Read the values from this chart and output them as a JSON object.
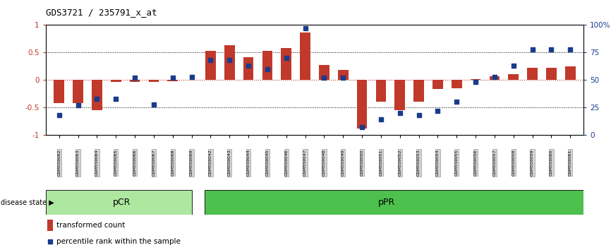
{
  "title": "GDS3721 / 235791_x_at",
  "samples": [
    "GSM559062",
    "GSM559063",
    "GSM559064",
    "GSM559065",
    "GSM559066",
    "GSM559067",
    "GSM559068",
    "GSM559069",
    "GSM559042",
    "GSM559043",
    "GSM559044",
    "GSM559045",
    "GSM559046",
    "GSM559047",
    "GSM559048",
    "GSM559049",
    "GSM559050",
    "GSM559051",
    "GSM559052",
    "GSM559053",
    "GSM559054",
    "GSM559055",
    "GSM559056",
    "GSM559057",
    "GSM559058",
    "GSM559059",
    "GSM559060",
    "GSM559061"
  ],
  "transformed_count": [
    -0.42,
    -0.42,
    -0.55,
    -0.04,
    -0.04,
    -0.04,
    -0.02,
    0.0,
    0.53,
    0.63,
    0.42,
    0.53,
    0.58,
    0.87,
    0.27,
    0.18,
    -0.88,
    -0.4,
    -0.55,
    -0.4,
    -0.16,
    -0.15,
    0.02,
    0.07,
    0.1,
    0.22,
    0.22,
    0.25
  ],
  "percentile_rank": [
    18,
    27,
    33,
    33,
    52,
    28,
    52,
    53,
    68,
    68,
    63,
    60,
    70,
    97,
    52,
    52,
    7,
    14,
    20,
    18,
    22,
    30,
    48,
    53,
    63,
    78,
    78,
    78
  ],
  "pcr_count": 8,
  "bar_color": "#c0392b",
  "dot_color": "#1a3b8c",
  "pcr_color": "#aee8a0",
  "ppr_color": "#4dc04d",
  "background_color": "#ffffff",
  "right_ylabel_ticks": [
    0,
    25,
    50,
    75,
    100
  ],
  "right_ylabel_labels": [
    "0",
    "25",
    "50",
    "75",
    "100%"
  ],
  "ylim": [
    -1.0,
    1.0
  ],
  "yticks": [
    -1.0,
    -0.5,
    0.0,
    0.5,
    1.0
  ],
  "legend_bar_label": "transformed count",
  "legend_dot_label": "percentile rank within the sample"
}
